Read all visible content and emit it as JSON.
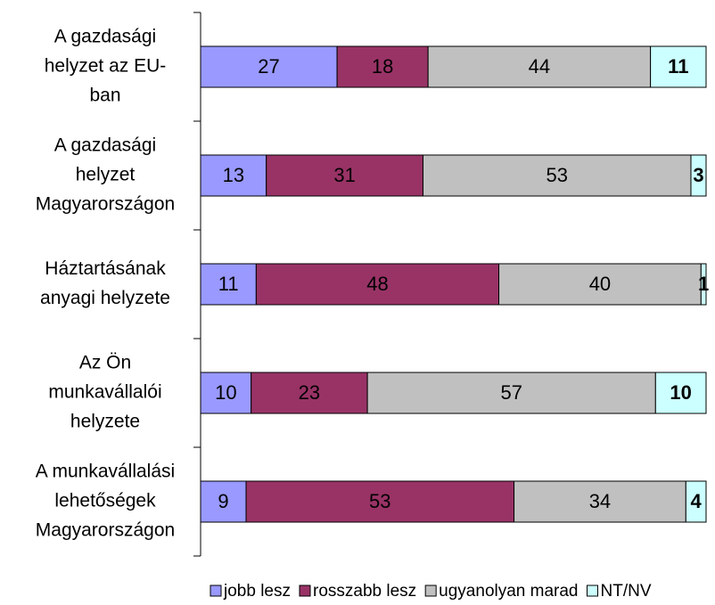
{
  "chart_data": {
    "type": "stacked_bar_horizontal",
    "categories": [
      [
        "A gazdasági",
        "helyzet az EU-",
        "ban"
      ],
      [
        "A gazdasági",
        "helyzet",
        "Magyarországon"
      ],
      [
        "Háztartásának",
        "anyagi helyzete"
      ],
      [
        "Az Ön",
        "munkavállalói",
        "helyzete"
      ],
      [
        "A munkavállalási",
        "lehetőségek",
        "Magyarországon"
      ]
    ],
    "series": [
      {
        "name": "jobb lesz",
        "color": "#9999ff",
        "values": [
          27,
          13,
          11,
          10,
          9
        ]
      },
      {
        "name": "rosszabb lesz",
        "color": "#993366",
        "values": [
          18,
          31,
          48,
          23,
          53
        ]
      },
      {
        "name": "ugyanolyan marad",
        "color": "#c0c0c0",
        "values": [
          44,
          53,
          40,
          57,
          34
        ]
      },
      {
        "name": "NT/NV",
        "color": "#ccffff",
        "values": [
          11,
          3,
          1,
          10,
          4
        ],
        "bold": true
      }
    ],
    "xlim": [
      0,
      100
    ],
    "legend": "bottom"
  }
}
